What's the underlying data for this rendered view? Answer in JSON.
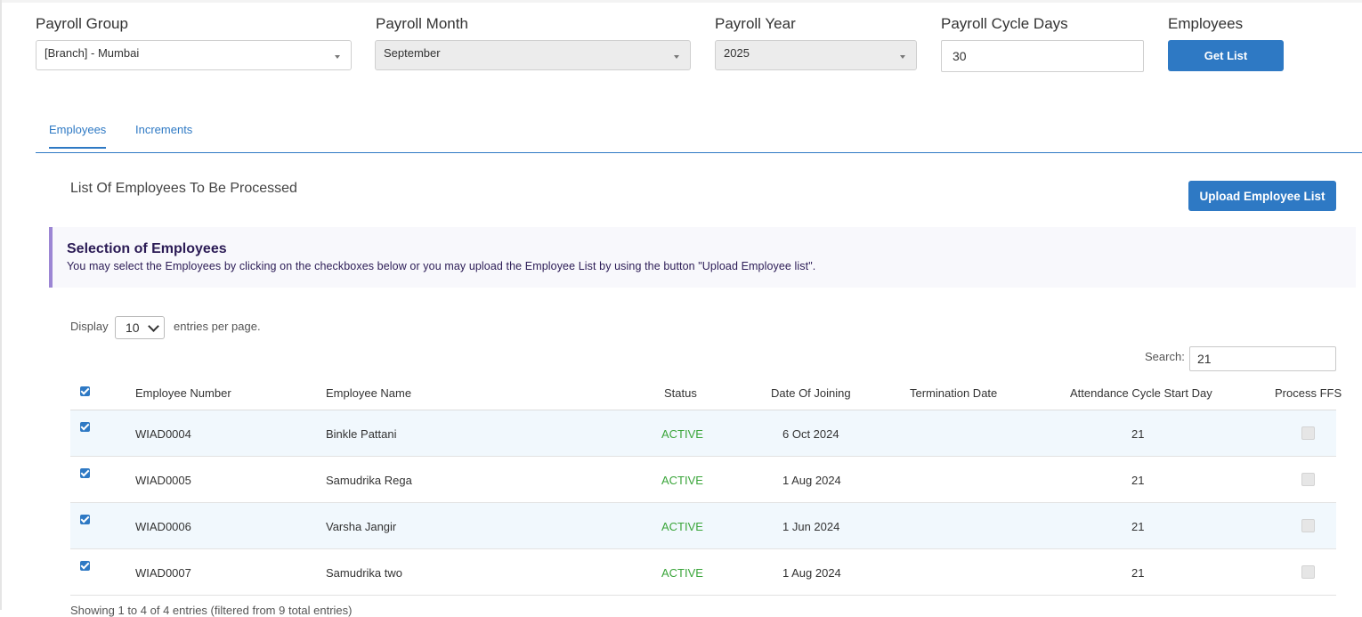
{
  "filters": {
    "payroll_group": {
      "label": "Payroll Group",
      "value": "[Branch] - Mumbai"
    },
    "payroll_month": {
      "label": "Payroll Month",
      "value": "September"
    },
    "payroll_year": {
      "label": "Payroll Year",
      "value": "2025"
    },
    "cycle_days": {
      "label": "Payroll Cycle Days",
      "value": "30"
    },
    "employees": {
      "label": "Employees",
      "button": "Get List"
    }
  },
  "tabs": [
    {
      "label": "Employees",
      "active": true
    },
    {
      "label": "Increments",
      "active": false
    }
  ],
  "section": {
    "title": "List Of Employees To Be Processed",
    "upload_button": "Upload Employee List"
  },
  "callout": {
    "title": "Selection of Employees",
    "text": "You may select the Employees by clicking on the checkboxes below or you may upload the Employee List by using the button \"Upload Employee list\"."
  },
  "table_controls": {
    "display_label": "Display",
    "page_size": "10",
    "entries_label": "entries per page.",
    "search_label": "Search:",
    "search_value": "21"
  },
  "table": {
    "columns": [
      "Employee Number",
      "Employee Name",
      "Status",
      "Date Of Joining",
      "Termination Date",
      "Attendance Cycle Start Day",
      "Process FFS"
    ],
    "rows": [
      {
        "number": "WIAD0004",
        "name": "Binkle Pattani",
        "status": "ACTIVE",
        "joining": "6 Oct 2024",
        "termination": "",
        "start_day": "21"
      },
      {
        "number": "WIAD0005",
        "name": "Samudrika Rega",
        "status": "ACTIVE",
        "joining": "1 Aug 2024",
        "termination": "",
        "start_day": "21"
      },
      {
        "number": "WIAD0006",
        "name": "Varsha Jangir",
        "status": "ACTIVE",
        "joining": "1 Jun 2024",
        "termination": "",
        "start_day": "21"
      },
      {
        "number": "WIAD0007",
        "name": "Samudrika two",
        "status": "ACTIVE",
        "joining": "1 Aug 2024",
        "termination": "",
        "start_day": "21"
      }
    ],
    "footer": "Showing 1 to 4 of 4 entries (filtered from 9 total entries)"
  },
  "colors": {
    "accent": "#2e79c4",
    "active_status": "#3aa53a",
    "callout_border": "#9c86d4"
  }
}
